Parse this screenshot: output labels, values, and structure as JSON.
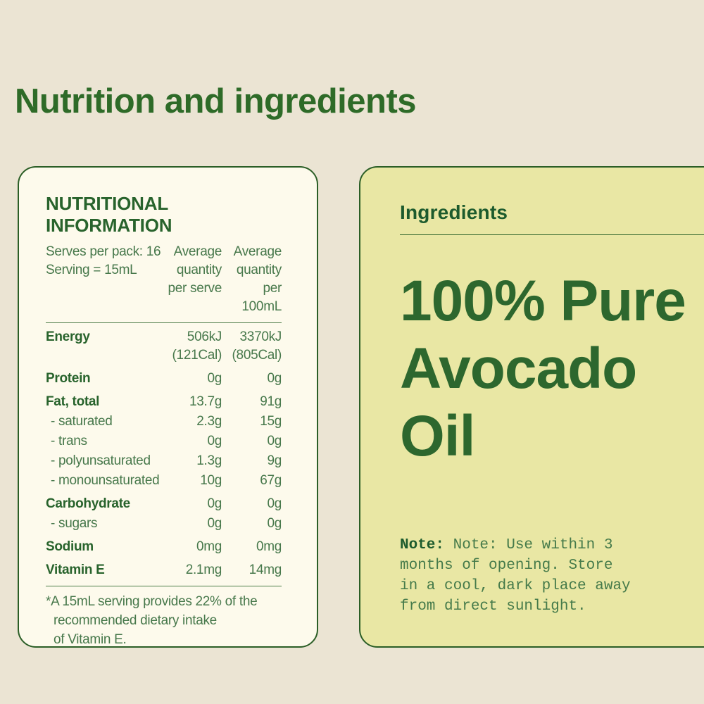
{
  "page": {
    "title": "Nutrition and ingredients",
    "colors": {
      "page_background": "#ebe4d3",
      "heading_green": "#2e6b28",
      "card_border_green": "#2b5e26",
      "nutrition_card_background": "#fdfaec",
      "ingredients_card_background": "#e9e7a4",
      "label_green_dark": "#28632c",
      "value_green_mid": "#47784b"
    }
  },
  "nutrition_card": {
    "title": "NUTRITIONAL INFORMATION",
    "serves_per_pack": "Serves per pack: 16",
    "serving_size": "Serving = 15mL",
    "col_per_serve": "Average quantity per serve",
    "col_per_100ml": "Average quantity per 100mL",
    "rows": [
      {
        "type": "main",
        "label": "Energy",
        "per_serve": "506kJ",
        "per_100ml": "3370kJ"
      },
      {
        "type": "cont",
        "label": "",
        "per_serve": "(121Cal)",
        "per_100ml": "(805Cal)"
      },
      {
        "type": "main",
        "label": "Protein",
        "per_serve": "0g",
        "per_100ml": "0g"
      },
      {
        "type": "main",
        "label": "Fat, total",
        "per_serve": "13.7g",
        "per_100ml": "91g"
      },
      {
        "type": "sub",
        "label": "- saturated",
        "per_serve": "2.3g",
        "per_100ml": "15g"
      },
      {
        "type": "sub",
        "label": "- trans",
        "per_serve": "0g",
        "per_100ml": "0g"
      },
      {
        "type": "sub",
        "label": "- polyunsaturated",
        "per_serve": "1.3g",
        "per_100ml": "9g"
      },
      {
        "type": "sub",
        "label": "- monounsaturated",
        "per_serve": "10g",
        "per_100ml": "67g"
      },
      {
        "type": "main",
        "label": "Carbohydrate",
        "per_serve": "0g",
        "per_100ml": "0g"
      },
      {
        "type": "sub",
        "label": "- sugars",
        "per_serve": "0g",
        "per_100ml": "0g"
      },
      {
        "type": "main",
        "label": "Sodium",
        "per_serve": "0mg",
        "per_100ml": "0mg"
      },
      {
        "type": "main",
        "label": "Vitamin E",
        "per_serve": "2.1mg",
        "per_100ml": "14mg"
      }
    ],
    "footnote_lines": [
      "*A 15mL serving provides 22% of the",
      "recommended dietary intake",
      "of Vitamin E."
    ]
  },
  "ingredients_card": {
    "title": "Ingredients",
    "headline": "100% Pure Avocado Oil",
    "note_label": "Note:",
    "note_lines": [
      " Note: Use within 3",
      "months of opening. Store",
      "in a cool, dark place away",
      "from direct sunlight."
    ]
  }
}
